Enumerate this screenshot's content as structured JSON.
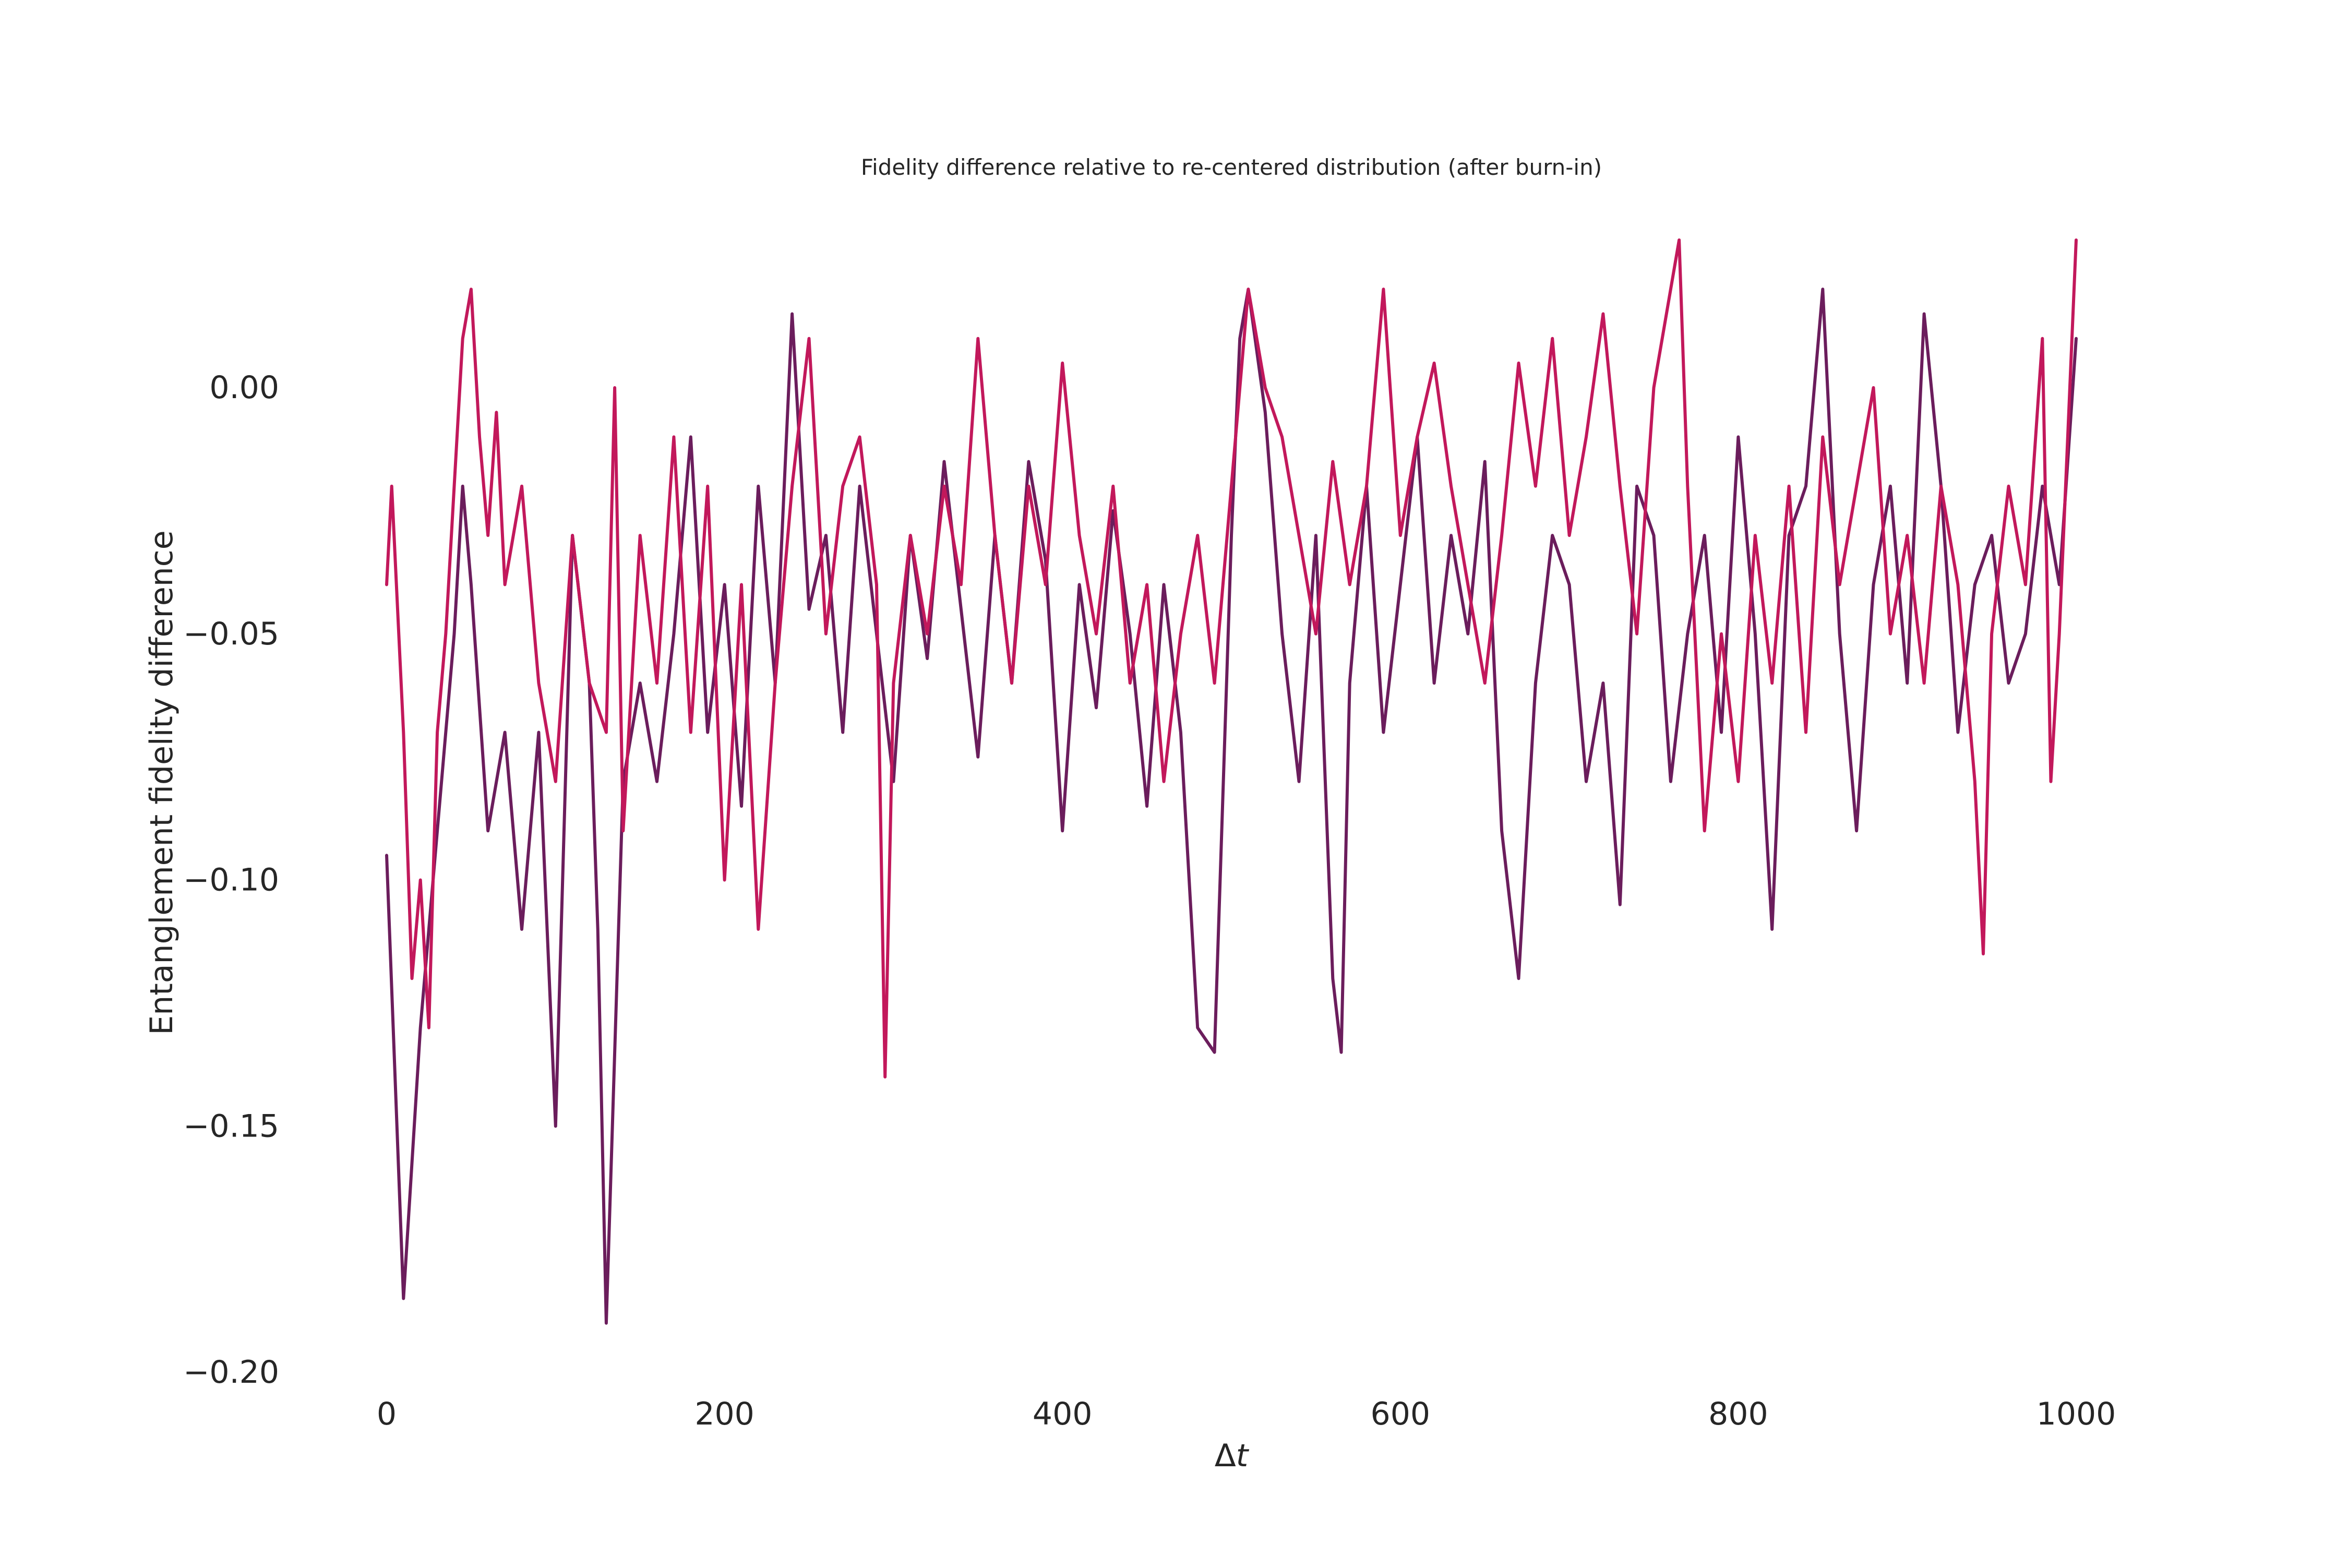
{
  "chart_data": {
    "type": "line",
    "title": "Fidelity difference relative to re-centered distribution (after burn-in)",
    "xlabel_symbol": "Δ",
    "xlabel_var": "t",
    "ylabel": "Entanglement fidelity difference",
    "xlim": [
      -25,
      1025
    ],
    "ylim": [
      -0.2,
      0.03
    ],
    "grid": false,
    "legend": "none",
    "x_ticks": [
      0,
      200,
      400,
      600,
      800,
      1000
    ],
    "x_tick_labels": [
      "0",
      "200",
      "400",
      "600",
      "800",
      "1000"
    ],
    "y_ticks": [
      0.0,
      -0.05,
      -0.1,
      -0.15,
      -0.2
    ],
    "y_tick_labels": [
      "0.00",
      "−0.05",
      "−0.10",
      "−0.15",
      "−0.20"
    ],
    "series": [
      {
        "color": "#6b1d5c",
        "x": [
          0,
          10,
          20,
          30,
          40,
          45,
          50,
          60,
          70,
          80,
          90,
          100,
          110,
          120,
          125,
          130,
          140,
          150,
          160,
          170,
          180,
          190,
          200,
          210,
          220,
          230,
          240,
          250,
          260,
          270,
          280,
          290,
          300,
          310,
          320,
          330,
          340,
          350,
          360,
          370,
          380,
          390,
          400,
          410,
          420,
          430,
          440,
          450,
          460,
          470,
          480,
          490,
          500,
          505,
          510,
          520,
          530,
          540,
          550,
          560,
          565,
          570,
          580,
          590,
          600,
          610,
          620,
          630,
          640,
          650,
          660,
          670,
          680,
          690,
          700,
          710,
          720,
          730,
          740,
          750,
          760,
          770,
          780,
          790,
          800,
          810,
          820,
          830,
          840,
          850,
          860,
          870,
          880,
          890,
          900,
          910,
          920,
          930,
          940,
          950,
          960,
          970,
          980,
          990,
          1000
        ],
        "y": [
          -0.095,
          -0.185,
          -0.13,
          -0.09,
          -0.05,
          -0.02,
          -0.04,
          -0.09,
          -0.07,
          -0.11,
          -0.07,
          -0.15,
          -0.03,
          -0.06,
          -0.11,
          -0.19,
          -0.08,
          -0.06,
          -0.08,
          -0.05,
          -0.01,
          -0.07,
          -0.04,
          -0.085,
          -0.02,
          -0.06,
          0.015,
          -0.045,
          -0.03,
          -0.07,
          -0.02,
          -0.05,
          -0.08,
          -0.03,
          -0.055,
          -0.015,
          -0.045,
          -0.075,
          -0.03,
          -0.06,
          -0.015,
          -0.035,
          -0.09,
          -0.04,
          -0.065,
          -0.025,
          -0.05,
          -0.085,
          -0.04,
          -0.07,
          -0.13,
          -0.135,
          -0.03,
          0.01,
          0.02,
          -0.005,
          -0.05,
          -0.08,
          -0.03,
          -0.12,
          -0.135,
          -0.06,
          -0.02,
          -0.07,
          -0.04,
          -0.01,
          -0.06,
          -0.03,
          -0.05,
          -0.015,
          -0.09,
          -0.12,
          -0.06,
          -0.03,
          -0.04,
          -0.08,
          -0.06,
          -0.105,
          -0.02,
          -0.03,
          -0.08,
          -0.05,
          -0.03,
          -0.07,
          -0.01,
          -0.05,
          -0.11,
          -0.03,
          -0.02,
          0.02,
          -0.05,
          -0.09,
          -0.04,
          -0.02,
          -0.06,
          0.015,
          -0.02,
          -0.07,
          -0.04,
          -0.03,
          -0.06,
          -0.05,
          -0.02,
          -0.04,
          0.01
        ]
      },
      {
        "color": "#c2185b",
        "x": [
          0,
          3,
          10,
          15,
          20,
          25,
          30,
          35,
          40,
          45,
          50,
          55,
          60,
          65,
          70,
          80,
          90,
          100,
          110,
          120,
          130,
          135,
          140,
          150,
          160,
          170,
          180,
          190,
          200,
          210,
          220,
          230,
          240,
          250,
          260,
          270,
          280,
          290,
          295,
          300,
          310,
          320,
          330,
          340,
          350,
          360,
          370,
          380,
          390,
          400,
          410,
          420,
          430,
          440,
          450,
          460,
          470,
          480,
          490,
          500,
          510,
          520,
          530,
          540,
          550,
          560,
          570,
          580,
          590,
          600,
          610,
          620,
          630,
          640,
          650,
          660,
          670,
          680,
          690,
          700,
          710,
          720,
          730,
          740,
          750,
          760,
          765,
          770,
          780,
          790,
          800,
          810,
          820,
          830,
          840,
          850,
          860,
          870,
          880,
          890,
          900,
          910,
          920,
          930,
          940,
          945,
          950,
          960,
          970,
          980,
          985,
          990,
          1000
        ],
        "y": [
          -0.04,
          -0.02,
          -0.07,
          -0.12,
          -0.1,
          -0.13,
          -0.07,
          -0.05,
          -0.02,
          0.01,
          0.02,
          -0.01,
          -0.03,
          -0.005,
          -0.04,
          -0.02,
          -0.06,
          -0.08,
          -0.03,
          -0.06,
          -0.07,
          0.0,
          -0.09,
          -0.03,
          -0.06,
          -0.01,
          -0.07,
          -0.02,
          -0.1,
          -0.04,
          -0.11,
          -0.06,
          -0.02,
          0.01,
          -0.05,
          -0.02,
          -0.01,
          -0.04,
          -0.14,
          -0.06,
          -0.03,
          -0.05,
          -0.02,
          -0.04,
          0.01,
          -0.03,
          -0.06,
          -0.02,
          -0.04,
          0.005,
          -0.03,
          -0.05,
          -0.02,
          -0.06,
          -0.04,
          -0.08,
          -0.05,
          -0.03,
          -0.06,
          -0.02,
          0.02,
          0.0,
          -0.01,
          -0.03,
          -0.05,
          -0.015,
          -0.04,
          -0.02,
          0.02,
          -0.03,
          -0.01,
          0.005,
          -0.02,
          -0.04,
          -0.06,
          -0.03,
          0.005,
          -0.02,
          0.01,
          -0.03,
          -0.01,
          0.015,
          -0.02,
          -0.05,
          0.0,
          0.02,
          0.03,
          -0.02,
          -0.09,
          -0.05,
          -0.08,
          -0.03,
          -0.06,
          -0.02,
          -0.07,
          -0.01,
          -0.04,
          -0.02,
          0.0,
          -0.05,
          -0.03,
          -0.06,
          -0.02,
          -0.04,
          -0.08,
          -0.115,
          -0.05,
          -0.02,
          -0.04,
          0.01,
          -0.08,
          -0.05,
          0.03
        ]
      }
    ]
  }
}
